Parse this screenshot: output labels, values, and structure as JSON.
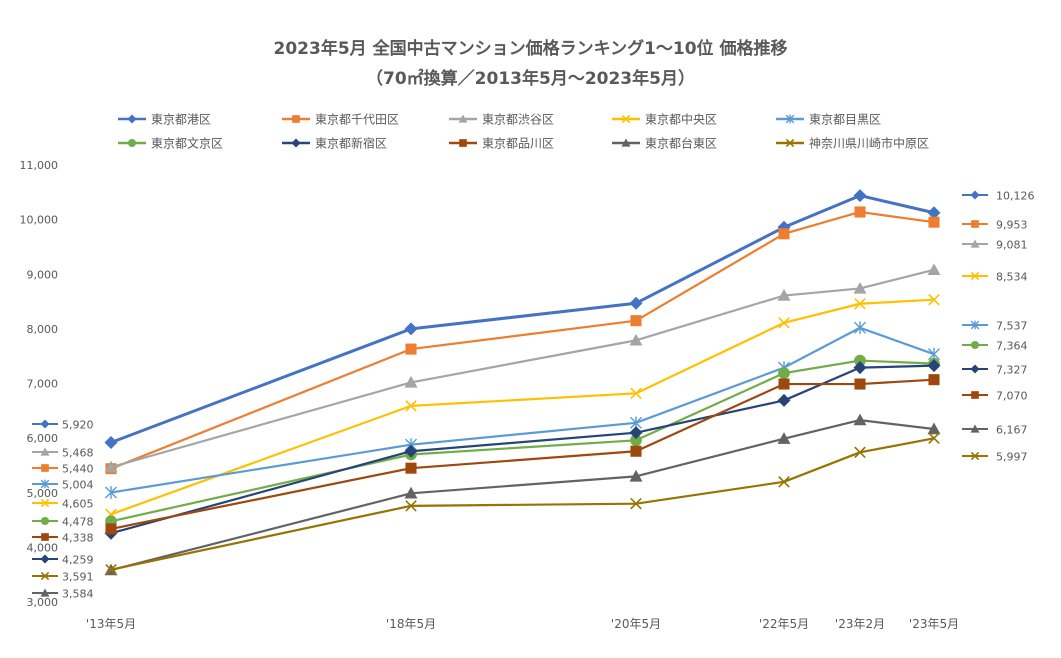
{
  "chart_data": {
    "type": "line",
    "title": "2023年5月 全国中古マンション価格ランキング1〜10位 価格推移",
    "subtitle": "（70㎡換算／2013年5月〜2023年5月）",
    "categories": [
      "'13年5月",
      "'18年5月",
      "'20年5月",
      "'22年5月",
      "'23年2月",
      "'23年5月"
    ],
    "ylim": [
      3000,
      11000
    ],
    "yticks": [
      "3,000",
      "4,000",
      "5,000",
      "6,000",
      "7,000",
      "8,000",
      "9,000",
      "10,000",
      "11,000"
    ],
    "grid": false,
    "legend_position": "top",
    "series": [
      {
        "name": "東京都港区",
        "color": "#4472C4",
        "marker": "diamond",
        "values": [
          5920,
          8000,
          8470,
          9860,
          10440,
          10126
        ],
        "start_label": "5,920",
        "end_label": "10,126"
      },
      {
        "name": "東京都千代田区",
        "color": "#ED7D31",
        "marker": "square",
        "values": [
          5440,
          7630,
          8150,
          9740,
          10140,
          9953
        ],
        "start_label": "5,440",
        "end_label": "9,953"
      },
      {
        "name": "東京都渋谷区",
        "color": "#A5A5A5",
        "marker": "triangle",
        "values": [
          5468,
          7020,
          7790,
          8610,
          8740,
          9081
        ],
        "start_label": "5,468",
        "end_label": "9,081"
      },
      {
        "name": "東京都中央区",
        "color": "#FFC000",
        "marker": "x",
        "values": [
          4605,
          6590,
          6820,
          8110,
          8460,
          8534
        ],
        "start_label": "4,605",
        "end_label": "8,534"
      },
      {
        "name": "東京都目黒区",
        "color": "#5B9BD5",
        "marker": "star",
        "values": [
          5004,
          5880,
          6280,
          7290,
          8020,
          7537
        ],
        "start_label": "5,004",
        "end_label": "7,537"
      },
      {
        "name": "東京都文京区",
        "color": "#70AD47",
        "marker": "circle",
        "values": [
          4478,
          5700,
          5960,
          7190,
          7420,
          7364
        ],
        "start_label": "4,478",
        "end_label": "7,364"
      },
      {
        "name": "東京都新宿区",
        "color": "#264478",
        "marker": "diamond",
        "values": [
          4259,
          5760,
          6100,
          6690,
          7290,
          7327
        ],
        "start_label": "4,259",
        "end_label": "7,327"
      },
      {
        "name": "東京都品川区",
        "color": "#9E480E",
        "marker": "square",
        "values": [
          4338,
          5450,
          5760,
          6990,
          6990,
          7070
        ],
        "start_label": "4,338",
        "end_label": "7,070"
      },
      {
        "name": "東京都台東区",
        "color": "#636363",
        "marker": "triangle",
        "values": [
          3584,
          4990,
          5300,
          5990,
          6330,
          6167
        ],
        "start_label": "3,584",
        "end_label": "6,167"
      },
      {
        "name": "神奈川県川崎市中原区",
        "color": "#997300",
        "marker": "x",
        "values": [
          3591,
          4760,
          4800,
          5200,
          5740,
          5997
        ],
        "start_label": "3,591",
        "end_label": "5,997"
      }
    ]
  }
}
